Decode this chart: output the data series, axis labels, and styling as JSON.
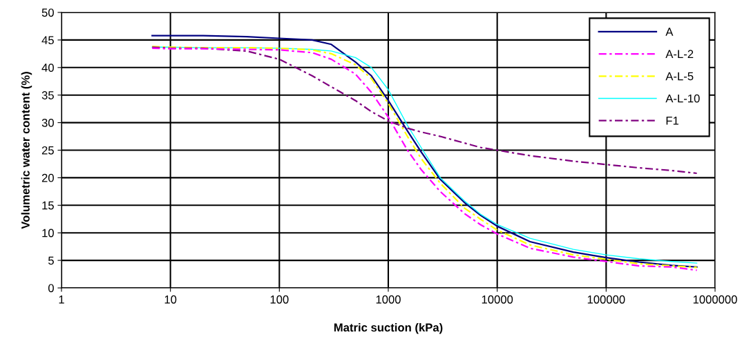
{
  "chart_data": {
    "type": "line",
    "xlabel": "Matric suction (kPa)",
    "ylabel": "Volumetric water content (%)",
    "log": "x",
    "grid": true,
    "legend": "top right",
    "marker": "none",
    "xlim": [
      1,
      1000000
    ],
    "xticks": [
      1,
      10,
      100,
      1000,
      10000,
      100000,
      1000000
    ],
    "ylim": [
      0,
      50
    ],
    "yticks": [
      0,
      5,
      10,
      15,
      20,
      25,
      30,
      35,
      40,
      45,
      50
    ],
    "x": [
      6.8,
      10,
      20,
      50,
      100,
      200,
      300,
      500,
      700,
      1000,
      1500,
      2000,
      3000,
      5000,
      7000,
      10000,
      20000,
      50000,
      100000,
      200000,
      400000,
      680000
    ],
    "series": [
      {
        "name": "A",
        "color": "#000080",
        "line_style": "solid",
        "values": [
          45.8,
          45.8,
          45.8,
          45.6,
          45.3,
          45.0,
          44.2,
          41.0,
          38.5,
          34.0,
          28.5,
          24.7,
          19.7,
          15.5,
          13.2,
          11.2,
          8.4,
          6.5,
          5.5,
          4.7,
          4.1,
          3.8
        ]
      },
      {
        "name": "A-L-2",
        "color": "#ff00ff",
        "line_style": "dashed",
        "values": [
          43.5,
          43.4,
          43.4,
          43.3,
          43.2,
          42.7,
          41.5,
          38.8,
          35.5,
          31.0,
          25.0,
          21.5,
          17.5,
          13.5,
          11.5,
          9.8,
          7.2,
          5.6,
          4.8,
          4.0,
          3.8,
          3.2
        ]
      },
      {
        "name": "A-L-5",
        "color": "#ffff00",
        "line_style": "dashed",
        "values": [
          43.8,
          43.7,
          43.6,
          43.6,
          43.5,
          43.2,
          42.5,
          40.5,
          38.0,
          33.5,
          27.5,
          23.5,
          19.0,
          14.5,
          12.5,
          10.5,
          7.8,
          6.0,
          5.2,
          4.4,
          4.0,
          3.7
        ]
      },
      {
        "name": "A-L-10",
        "color": "#00ffff",
        "line_style": "solid",
        "values": [
          43.7,
          43.7,
          43.6,
          43.6,
          43.5,
          43.3,
          43.0,
          41.8,
          40.0,
          36.0,
          29.5,
          25.5,
          20.0,
          15.8,
          13.4,
          11.5,
          9.0,
          7.0,
          6.0,
          5.3,
          4.8,
          4.5
        ]
      },
      {
        "name": "F1",
        "color": "#800080",
        "line_style": "dashed",
        "values": [
          43.7,
          43.5,
          43.5,
          43.0,
          41.5,
          38.5,
          36.5,
          34.0,
          32.0,
          30.3,
          29.0,
          28.3,
          27.5,
          26.3,
          25.5,
          25.0,
          24.0,
          23.0,
          22.4,
          21.8,
          21.3,
          20.8
        ]
      }
    ]
  }
}
